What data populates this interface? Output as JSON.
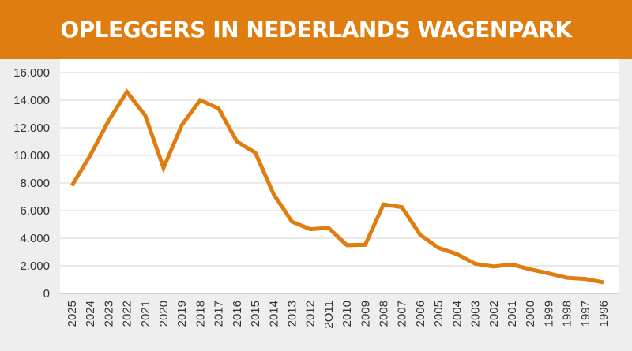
{
  "header": {
    "title": "OPLEGGERS IN NEDERLANDS WAGENPARK"
  },
  "colors": {
    "accent": "#e07d10",
    "line": "#e07d10",
    "background": "#eeeeee",
    "plot_background": "#ffffff",
    "grid": "#d6d6d6"
  },
  "chart_data": {
    "type": "line",
    "title": "OPLEGGERS IN NEDERLANDS WAGENPARK",
    "xlabel": "",
    "ylabel": "",
    "ylim": [
      0,
      16000
    ],
    "yticks": [
      0,
      2000,
      4000,
      6000,
      8000,
      10000,
      12000,
      14000,
      16000
    ],
    "ytick_labels": [
      "0",
      "2.000",
      "4.000",
      "6.000",
      "8.000",
      "10.000",
      "12.000",
      "14.000",
      "16.000"
    ],
    "grid": true,
    "categories": [
      "2025",
      "2024",
      "2023",
      "2022",
      "2021",
      "2020",
      "2019",
      "2018",
      "2017",
      "2016",
      "2015",
      "2014",
      "2013",
      "2012",
      "2O11",
      "2010",
      "2009",
      "2008",
      "2007",
      "2006",
      "2005",
      "2004",
      "2003",
      "2002",
      "2001",
      "2000",
      "1999",
      "1998",
      "1997",
      "1996"
    ],
    "series": [
      {
        "values": [
          7800,
          10000,
          12500,
          14600,
          12900,
          9100,
          12200,
          14000,
          13400,
          11000,
          10200,
          7200,
          5200,
          4650,
          4750,
          3500,
          3520,
          6450,
          6250,
          4250,
          3300,
          2850,
          2150,
          1950,
          2100,
          1750,
          1450,
          1130,
          1050,
          800
        ]
      }
    ]
  }
}
